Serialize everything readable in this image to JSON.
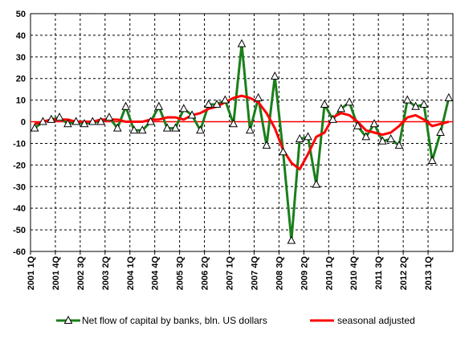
{
  "chart_data": {
    "type": "line",
    "ylim": [
      -60,
      50
    ],
    "yticks": [
      -60,
      -50,
      -40,
      -30,
      -20,
      -10,
      0,
      10,
      20,
      30,
      40,
      50
    ],
    "x_tick_labels": [
      "2001 1Q",
      "2001 4Q",
      "2002 3Q",
      "2003 2Q",
      "2004 1Q",
      "2004 4Q",
      "2005 3Q",
      "2006 2Q",
      "2007 1Q",
      "2007 4Q",
      "2008 3Q",
      "2009 2Q",
      "2010 1Q",
      "2010 4Q",
      "2011 3Q",
      "2012 2Q",
      "2013 1Q"
    ],
    "grid": true,
    "legend_position": "bottom",
    "series": [
      {
        "name": "Net flow of capital by banks, bln. US dollars",
        "color": "#1a7f1a",
        "marker": "triangle",
        "values": [
          -3,
          0,
          1,
          2,
          -1,
          0,
          -1,
          0,
          0,
          2,
          -3,
          7,
          -4,
          -4,
          0,
          7,
          -3,
          -3,
          6,
          3,
          -4,
          8,
          8,
          10,
          -1,
          36,
          -4,
          11,
          -11,
          21,
          -14,
          -55,
          -8,
          -7,
          -29,
          8,
          1,
          6,
          9,
          -2,
          -7,
          -1,
          -9,
          -8,
          -11,
          10,
          7,
          8,
          -18,
          -5,
          11
        ]
      },
      {
        "name": "seasonal adjusted",
        "color": "#ff0000",
        "values": [
          -1,
          0,
          1,
          1,
          1,
          0,
          0,
          0,
          1,
          1,
          1,
          0,
          0,
          0,
          1,
          1,
          2,
          2,
          1,
          3,
          4,
          6,
          7,
          9,
          11,
          12,
          11,
          9,
          4,
          -3,
          -13,
          -19,
          -22,
          -15,
          -7,
          -5,
          2,
          4,
          3,
          0,
          -4,
          -5,
          -6,
          -5,
          -2,
          2,
          3,
          1,
          -2,
          -1,
          0
        ]
      }
    ]
  }
}
